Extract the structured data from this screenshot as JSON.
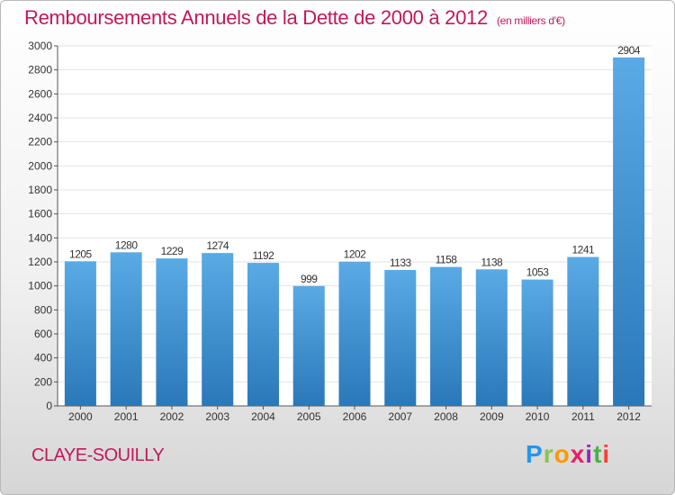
{
  "header": {
    "title": "Remboursements Annuels de la Dette de 2000 à 2012",
    "subtitle": "(en milliers d'€)"
  },
  "footer": {
    "commune": "CLAYE-SOUILLY",
    "logo_letters": [
      "P",
      "r",
      "o",
      "x",
      "i",
      "t",
      "i"
    ],
    "logo_colors": [
      "#2196f3",
      "#8bc34a",
      "#ff9800",
      "#e91e63",
      "#9c27b0",
      "#4caf50",
      "#f44336"
    ]
  },
  "chart_data": {
    "type": "bar",
    "categories": [
      "2000",
      "2001",
      "2002",
      "2003",
      "2004",
      "2005",
      "2006",
      "2007",
      "2008",
      "2009",
      "2010",
      "2011",
      "2012"
    ],
    "values": [
      1205,
      1280,
      1229,
      1274,
      1192,
      999,
      1202,
      1133,
      1158,
      1138,
      1053,
      1241,
      2904
    ],
    "ylim": [
      0,
      3000
    ],
    "yticks": [
      0,
      200,
      400,
      600,
      800,
      1000,
      1200,
      1400,
      1600,
      1800,
      2000,
      2200,
      2400,
      2600,
      2800,
      3000
    ],
    "grid": true,
    "bar_color_top": "#5aaae6",
    "bar_color_bottom": "#2a78b8"
  }
}
